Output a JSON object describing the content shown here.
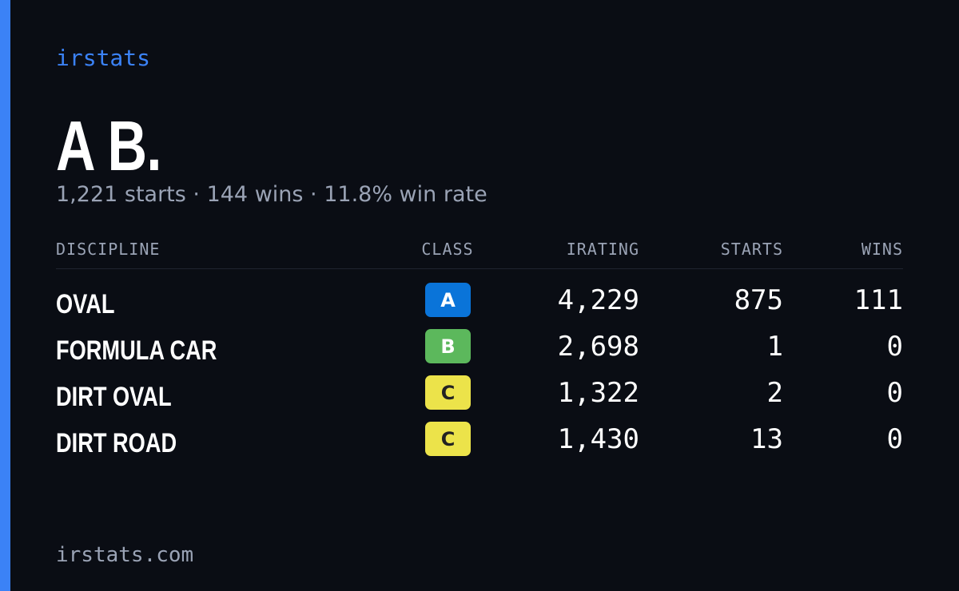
{
  "brand": "irstats",
  "name": "A B.",
  "summary": "1,221 starts · 144 wins · 11.8% win rate",
  "table": {
    "headers": [
      "DISCIPLINE",
      "CLASS",
      "IRATING",
      "STARTS",
      "WINS"
    ],
    "rows": [
      [
        "OVAL",
        "A",
        "4,229",
        "875",
        "111"
      ],
      [
        "FORMULA CAR",
        "B",
        "2,698",
        "1",
        "0"
      ],
      [
        "DIRT OVAL",
        "C",
        "1,322",
        "2",
        "0"
      ],
      [
        "DIRT ROAD",
        "C",
        "1,430",
        "13",
        "0"
      ]
    ]
  },
  "footer": "irstats.com"
}
